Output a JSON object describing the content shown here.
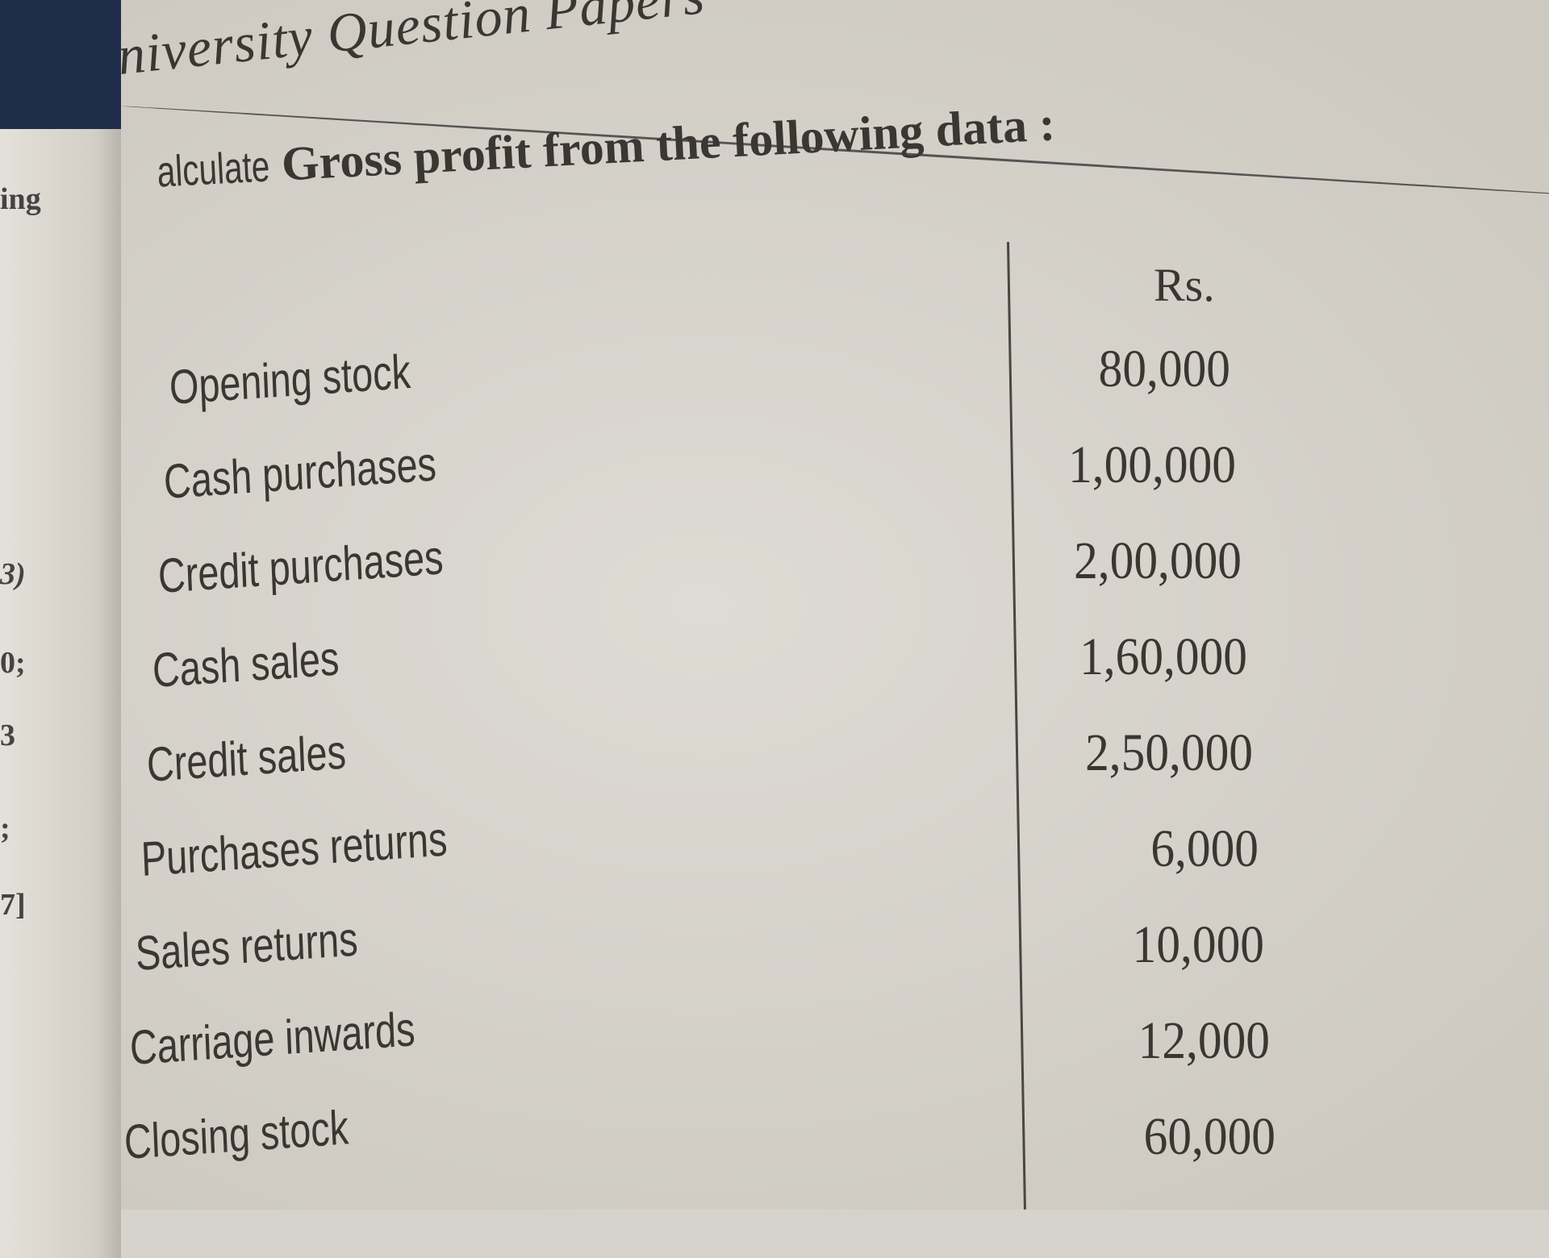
{
  "header": {
    "prefix": "niversity",
    "title": "Question Papers"
  },
  "question": {
    "lead": "alculate",
    "text": "Gross profit from the following data :"
  },
  "left_page_fragments": [
    "ing",
    "3)",
    "0;",
    "3",
    ";",
    "7]"
  ],
  "table": {
    "unit": "Rs.",
    "rows": [
      {
        "label": "Opening stock",
        "value": "80,000"
      },
      {
        "label": "Cash purchases",
        "value": "1,00,000"
      },
      {
        "label": "Credit purchases",
        "value": "2,00,000"
      },
      {
        "label": "Cash sales",
        "value": "1,60,000"
      },
      {
        "label": "Credit sales",
        "value": "2,50,000"
      },
      {
        "label": "Purchases returns",
        "value": "6,000"
      },
      {
        "label": "Sales returns",
        "value": "10,000"
      },
      {
        "label": "Carriage inwards",
        "value": "12,000"
      },
      {
        "label": "Closing stock",
        "value": "60,000"
      }
    ]
  }
}
